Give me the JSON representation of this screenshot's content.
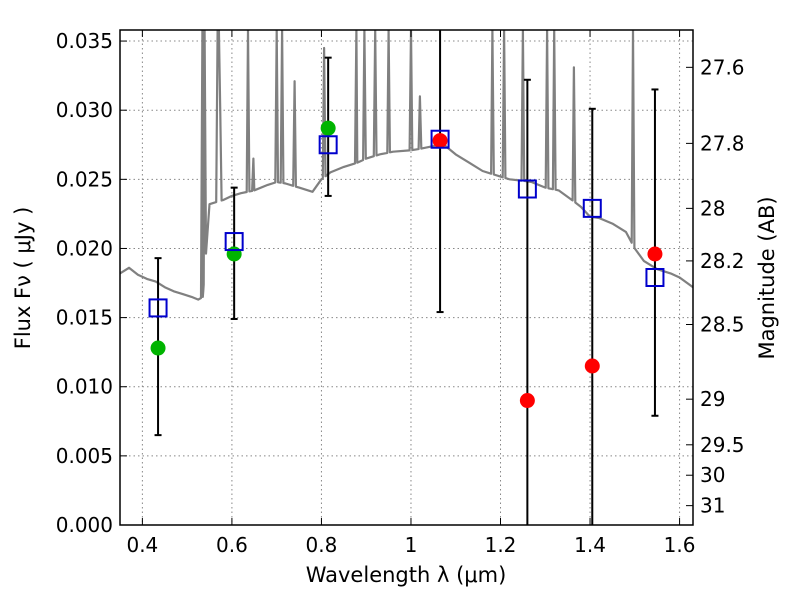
{
  "chart_data": {
    "type": "scatter",
    "xlabel": "Wavelength  λ (μm)",
    "ylabel": "Flux  Fν  ( μJy )",
    "y2label": "Magnitude (AB)",
    "xlim": [
      0.35,
      1.63
    ],
    "ylim": [
      0.0,
      0.0358
    ],
    "x_ticks": [
      0.4,
      0.6,
      0.8,
      1.0,
      1.2,
      1.4,
      1.6
    ],
    "x_tick_labels": [
      "0.4",
      "0.6",
      "0.8",
      "1",
      "1.2",
      "1.4",
      "1.6"
    ],
    "y_ticks": [
      0.0,
      0.005,
      0.01,
      0.015,
      0.02,
      0.025,
      0.03,
      0.035
    ],
    "y_tick_labels": [
      "0.000",
      "0.005",
      "0.010",
      "0.015",
      "0.020",
      "0.025",
      "0.030",
      "0.035"
    ],
    "y2_ticks": [
      {
        "label": "27.6",
        "flux": 0.0331
      },
      {
        "label": "27.8",
        "flux": 0.0276
      },
      {
        "label": "28",
        "flux": 0.0229
      },
      {
        "label": "28.2",
        "flux": 0.0191
      },
      {
        "label": "28.5",
        "flux": 0.0145
      },
      {
        "label": "29",
        "flux": 0.0091
      },
      {
        "label": "29.5",
        "flux": 0.0058
      },
      {
        "label": "30",
        "flux": 0.0036
      },
      {
        "label": "31",
        "flux": 0.0014
      }
    ],
    "grid": true,
    "colors": {
      "template": "#808080",
      "model_box": "#0000cc",
      "optical_points": "#00b400",
      "ir_points": "#ff0000",
      "errorbar": "#000000",
      "grid": "#888888"
    },
    "series": [
      {
        "kind": "line",
        "x": [
          0.35,
          0.37,
          0.39,
          0.41,
          0.43,
          0.45,
          0.47,
          0.49,
          0.51,
          0.525,
          0.535,
          0.55,
          0.58,
          0.6,
          0.62,
          0.65,
          0.68,
          0.7,
          0.72,
          0.75,
          0.78,
          0.8,
          0.82,
          0.85,
          0.88,
          0.9,
          0.93,
          0.96,
          1.0,
          1.02,
          1.05,
          1.07,
          1.1,
          1.13,
          1.16,
          1.2,
          1.22,
          1.25,
          1.27,
          1.3,
          1.33,
          1.36,
          1.38,
          1.4,
          1.42,
          1.45,
          1.48,
          1.5,
          1.52,
          1.55,
          1.58,
          1.6,
          1.63
        ],
        "y": [
          0.0182,
          0.0186,
          0.0181,
          0.0178,
          0.0176,
          0.0172,
          0.0169,
          0.0167,
          0.0165,
          0.0163,
          0.0165,
          0.0232,
          0.0235,
          0.0238,
          0.024,
          0.0242,
          0.0246,
          0.0248,
          0.0247,
          0.0244,
          0.0241,
          0.025,
          0.0255,
          0.0259,
          0.0262,
          0.0265,
          0.0268,
          0.027,
          0.0271,
          0.0272,
          0.0274,
          0.0276,
          0.0268,
          0.0262,
          0.0256,
          0.0252,
          0.025,
          0.0249,
          0.0248,
          0.0244,
          0.0242,
          0.0235,
          0.023,
          0.0223,
          0.0222,
          0.0218,
          0.0212,
          0.02,
          0.0191,
          0.0185,
          0.0182,
          0.0179,
          0.0172
        ]
      },
      {
        "kind": "model",
        "x": [
          0.435,
          0.605,
          0.815,
          1.065,
          1.26,
          1.405,
          1.545
        ],
        "y": [
          0.0157,
          0.0205,
          0.0275,
          0.0279,
          0.0243,
          0.0229,
          0.0179
        ]
      },
      {
        "kind": "observed-optical",
        "x": [
          0.435,
          0.605,
          0.815
        ],
        "y": [
          0.0128,
          0.0196,
          0.0287
        ],
        "err_low": [
          0.0065,
          0.0149,
          0.0238
        ],
        "err_high": [
          0.0193,
          0.0244,
          0.0338
        ]
      },
      {
        "kind": "observed-ir",
        "x": [
          1.065,
          1.26,
          1.405,
          1.545
        ],
        "y": [
          0.0278,
          0.009,
          0.0115,
          0.0196
        ],
        "err_low": [
          0.0154,
          0.0,
          0.0,
          0.0079
        ],
        "err_high": [
          0.0358,
          0.0322,
          0.0301,
          0.0315
        ]
      }
    ],
    "emission_lines": [
      {
        "x": 0.534,
        "peak": 0.0358
      },
      {
        "x": 0.539,
        "peak": 0.0358
      },
      {
        "x": 0.568,
        "peak": 0.0358
      },
      {
        "x": 0.571,
        "peak": 0.0358
      },
      {
        "x": 0.574,
        "peak": 0.0297
      },
      {
        "x": 0.636,
        "peak": 0.0358
      },
      {
        "x": 0.648,
        "peak": 0.0265
      },
      {
        "x": 0.7,
        "peak": 0.0358
      },
      {
        "x": 0.712,
        "peak": 0.0358
      },
      {
        "x": 0.74,
        "peak": 0.0321
      },
      {
        "x": 0.806,
        "peak": 0.0345
      },
      {
        "x": 0.878,
        "peak": 0.0358
      },
      {
        "x": 0.896,
        "peak": 0.0358
      },
      {
        "x": 0.92,
        "peak": 0.0358
      },
      {
        "x": 0.95,
        "peak": 0.0358
      },
      {
        "x": 1.0,
        "peak": 0.0358
      },
      {
        "x": 1.02,
        "peak": 0.031
      },
      {
        "x": 1.182,
        "peak": 0.0358
      },
      {
        "x": 1.208,
        "peak": 0.0358
      },
      {
        "x": 1.25,
        "peak": 0.0358
      },
      {
        "x": 1.304,
        "peak": 0.0358
      },
      {
        "x": 1.32,
        "peak": 0.0358
      },
      {
        "x": 1.364,
        "peak": 0.0331
      },
      {
        "x": 1.496,
        "peak": 0.0358
      }
    ]
  }
}
